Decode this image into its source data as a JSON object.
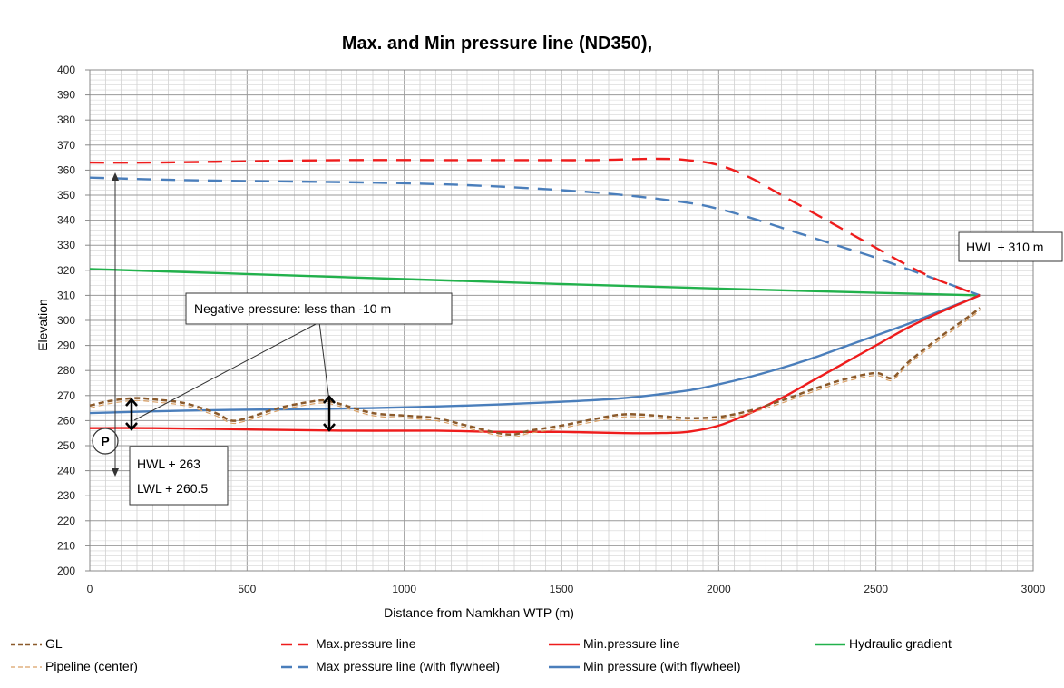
{
  "chart_data": {
    "type": "line",
    "title": "Max. and Min pressure line (ND350),",
    "xlabel": "Distance from Namkhan WTP (m)",
    "ylabel": "Elevation",
    "xlim": [
      0,
      3000
    ],
    "ylim": [
      200,
      400
    ],
    "x_ticks": [
      0,
      500,
      1000,
      1500,
      2000,
      2500,
      3000
    ],
    "y_ticks": [
      200,
      210,
      220,
      230,
      240,
      250,
      260,
      270,
      280,
      290,
      300,
      310,
      320,
      330,
      340,
      350,
      360,
      370,
      380,
      390,
      400
    ],
    "grid": true,
    "legend_position": "bottom",
    "series": [
      {
        "name": "GL",
        "color": "#8B5A2B",
        "style": "dashed",
        "x": [
          0,
          50,
          100,
          150,
          200,
          300,
          400,
          450,
          500,
          600,
          700,
          750,
          800,
          900,
          1000,
          1100,
          1200,
          1300,
          1350,
          1400,
          1500,
          1600,
          1700,
          1800,
          1900,
          2000,
          2100,
          2200,
          2300,
          2400,
          2500,
          2550,
          2600,
          2700,
          2800,
          2830
        ],
        "y": [
          266,
          267.5,
          268.5,
          269,
          268.5,
          267,
          263,
          260,
          261,
          265,
          267.5,
          268,
          266.5,
          263,
          262,
          261,
          258,
          255,
          254.5,
          256,
          258,
          260.5,
          262.5,
          262,
          261,
          261.5,
          264,
          268,
          272.5,
          276.5,
          279,
          277,
          283,
          293,
          302,
          305
        ]
      },
      {
        "name": "Pipeline (center)",
        "color": "#D9A066",
        "style": "dashed",
        "x": [
          0,
          50,
          100,
          150,
          200,
          300,
          400,
          450,
          500,
          600,
          700,
          750,
          800,
          900,
          1000,
          1100,
          1200,
          1300,
          1350,
          1400,
          1500,
          1600,
          1700,
          1800,
          1900,
          2000,
          2100,
          2200,
          2300,
          2400,
          2500,
          2550,
          2600,
          2700,
          2800,
          2830
        ],
        "y": [
          265,
          266.5,
          267.5,
          268,
          267.5,
          266,
          262,
          259,
          260,
          264,
          266.5,
          267,
          265.5,
          262,
          261,
          260,
          257,
          254,
          253.5,
          255,
          257,
          259.5,
          261.5,
          261,
          260,
          260.5,
          263,
          267,
          271.5,
          275.5,
          278,
          276,
          282,
          292,
          301,
          304
        ]
      },
      {
        "name": "Max.pressure line",
        "color": "#EE1C1C",
        "style": "dashed",
        "x": [
          0,
          200,
          500,
          800,
          1100,
          1400,
          1600,
          1800,
          1900,
          2000,
          2100,
          2200,
          2300,
          2400,
          2500,
          2600,
          2700,
          2830
        ],
        "y": [
          363,
          363,
          363.5,
          364,
          364,
          364,
          364,
          364.5,
          364,
          362,
          357,
          350,
          343,
          336,
          329,
          322,
          316,
          310
        ]
      },
      {
        "name": "Min.pressure line",
        "color": "#EE1C1C",
        "style": "solid",
        "x": [
          0,
          200,
          500,
          800,
          1100,
          1300,
          1500,
          1700,
          1800,
          1900,
          2000,
          2100,
          2200,
          2300,
          2400,
          2500,
          2600,
          2700,
          2830
        ],
        "y": [
          257,
          257,
          256.5,
          256,
          256,
          255.5,
          255.5,
          255,
          255,
          255.5,
          258,
          263,
          269,
          276,
          283,
          290,
          297,
          303,
          310
        ]
      },
      {
        "name": "Hydraulic gradient",
        "color": "#22B14C",
        "style": "solid",
        "x": [
          0,
          500,
          1000,
          1500,
          2000,
          2500,
          2830
        ],
        "y": [
          320.5,
          318.5,
          316.5,
          314.5,
          312.7,
          311,
          310
        ]
      },
      {
        "name": "Max pressure line (with flywheel)",
        "color": "#4A7EBB",
        "style": "dashed",
        "x": [
          0,
          300,
          600,
          900,
          1200,
          1500,
          1700,
          1900,
          2000,
          2100,
          2200,
          2300,
          2400,
          2500,
          2600,
          2700,
          2830
        ],
        "y": [
          357,
          356,
          355.5,
          355,
          354,
          352,
          350,
          347,
          344.5,
          341,
          337,
          333,
          329,
          325,
          320.5,
          316,
          310
        ]
      },
      {
        "name": "Min pressure (with flywheel)",
        "color": "#4A7EBB",
        "style": "solid",
        "x": [
          0,
          300,
          600,
          900,
          1200,
          1500,
          1700,
          1900,
          2000,
          2100,
          2200,
          2300,
          2400,
          2500,
          2600,
          2700,
          2830
        ],
        "y": [
          263,
          264,
          264.5,
          265,
          266,
          267.5,
          269,
          272,
          274.5,
          277.5,
          281,
          285,
          289.5,
          294,
          298.5,
          303.5,
          310
        ]
      }
    ],
    "annotations": {
      "negative_pressure": "Negative pressure: less than -10 m",
      "hwl_end": "HWL + 310 m",
      "hwl_start": "HWL + 263",
      "lwl_start": "LWL + 260.5",
      "pump_symbol": "P"
    }
  }
}
